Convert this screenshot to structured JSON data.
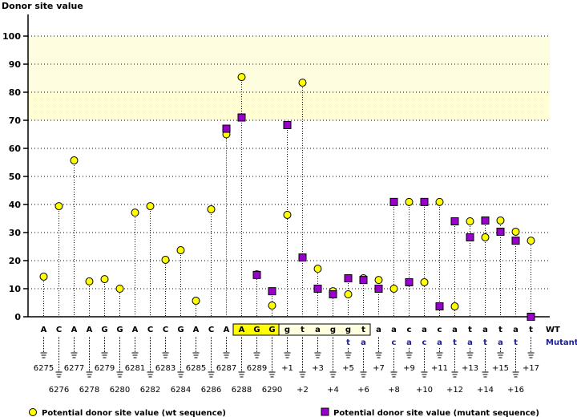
{
  "chart_data": {
    "type": "scatter",
    "subtype": "lollipop",
    "title": "",
    "ylabel": "Donor site value",
    "xlabel": "",
    "ylim": [
      0,
      100
    ],
    "yticks": [
      0,
      10,
      20,
      30,
      40,
      50,
      60,
      70,
      80,
      90,
      100
    ],
    "grid": true,
    "highlight_bands": [
      {
        "from": 80,
        "to": 100,
        "color": "#fffde0",
        "style": "solid"
      },
      {
        "from": 70,
        "to": 80,
        "color": "#fffde8",
        "style": "dithered"
      }
    ],
    "positions": [
      "6275",
      "6276",
      "6277",
      "6278",
      "6279",
      "6280",
      "6281",
      "6282",
      "6283",
      "6284",
      "6285",
      "6286",
      "6287",
      "6288",
      "6289",
      "6290",
      "+1",
      "+2",
      "+3",
      "+4",
      "+5",
      "+6",
      "+7",
      "+8",
      "+9",
      "+10",
      "+11",
      "+12",
      "+13",
      "+14",
      "+15",
      "+16",
      "+17"
    ],
    "wt_bases": [
      "A",
      "C",
      "A",
      "A",
      "G",
      "G",
      "A",
      "C",
      "C",
      "G",
      "A",
      "C",
      "A",
      "A",
      "G",
      "G",
      "g",
      "t",
      "a",
      "g",
      "g",
      "t",
      "a",
      "a",
      "c",
      "a",
      "c",
      "a",
      "t",
      "a",
      "t",
      "a",
      "t"
    ],
    "mutant_bases": [
      "",
      "",
      "",
      "",
      "",
      "",
      "",
      "",
      "",
      "",
      "",
      "",
      "",
      "",
      "",
      "",
      "",
      "",
      "",
      "",
      "t",
      "a",
      "",
      "c",
      "a",
      "c",
      "a",
      "t",
      "a",
      "t",
      "a",
      "t",
      ""
    ],
    "exon_box": {
      "start_index": 13,
      "end_index": 15,
      "color": "#ffff00"
    },
    "intron_box": {
      "start_index": 16,
      "end_index": 21,
      "color": "#ffffe0"
    },
    "series": [
      {
        "name": "Potential donor site value (wt sequence)",
        "marker": "circle",
        "color": "#ffff00",
        "values": [
          14.3,
          39.4,
          55.7,
          12.6,
          13.4,
          10.0,
          37.1,
          39.4,
          20.3,
          23.7,
          5.7,
          38.3,
          65.0,
          85.4,
          15.1,
          4.0,
          36.3,
          83.4,
          17.1,
          9.1,
          8.0,
          13.7,
          13.1,
          10.0,
          40.9,
          12.3,
          40.9,
          3.7,
          34.0,
          28.3,
          34.3,
          30.3,
          27.1
        ]
      },
      {
        "name": "Potential donor site value (mutant sequence)",
        "marker": "square",
        "color": "#9900cc",
        "values": [
          null,
          null,
          null,
          null,
          null,
          null,
          null,
          null,
          null,
          null,
          null,
          null,
          67.0,
          71.0,
          14.9,
          9.1,
          68.3,
          21.1,
          10.0,
          8.0,
          13.7,
          13.1,
          10.0,
          40.9,
          12.3,
          40.9,
          3.7,
          34.0,
          28.3,
          34.3,
          30.3,
          27.1,
          0.0
        ]
      }
    ],
    "row_labels": {
      "wt": "WT",
      "mutant": "Mutant"
    },
    "legend": {
      "placement": "bottom",
      "items": [
        {
          "label": "Potential donor site value (wt sequence)",
          "marker": "circle",
          "color": "#ffff00"
        },
        {
          "label": "Potential donor site value (mutant sequence)",
          "marker": "square",
          "color": "#9900cc"
        }
      ]
    }
  }
}
